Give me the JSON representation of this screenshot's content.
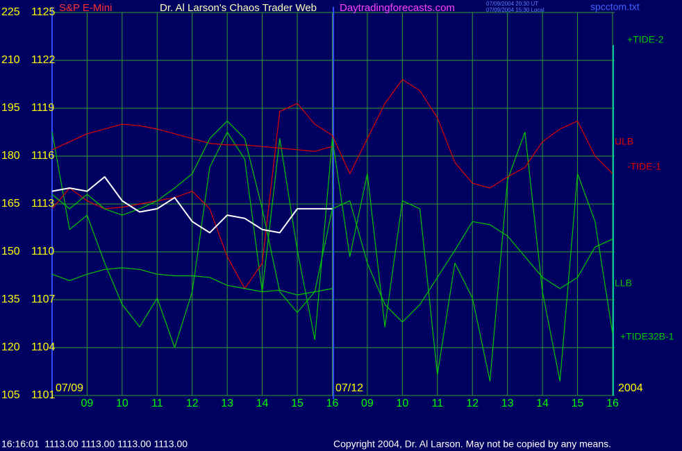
{
  "chart_data": {
    "type": "line",
    "title": "Dr. Al Larson's Chaos Trader Web",
    "symbol": "S&P E-Mini",
    "site": "Daytradingforecasts.com",
    "stamps": [
      "07/09/2004 20:30 UT",
      "07/09/2004 15:30 Local"
    ],
    "file": "spcctom.txt",
    "status": "16:16:01  1113.00 1113.00 1113.00 1113.00",
    "copyright": "Copyright 2004, Dr. Al Larson. May not be copied by any means.",
    "date_labels": [
      "07/09",
      "07/12",
      "2004"
    ],
    "categories": [
      null,
      null,
      "09",
      null,
      "10",
      null,
      "11",
      null,
      "12",
      null,
      "13",
      null,
      "14",
      null,
      "15",
      null,
      "16",
      null,
      "09",
      null,
      "10",
      null,
      "11",
      null,
      "12",
      null,
      "13",
      null,
      "14",
      null,
      "15",
      null,
      "16"
    ],
    "ylim": [
      1101,
      1125
    ],
    "yticks": [
      1101,
      1104,
      1107,
      1110,
      1113,
      1116,
      1119,
      1122,
      1125
    ],
    "y2lim": [
      105,
      225
    ],
    "y2ticks": [
      105,
      120,
      135,
      150,
      165,
      180,
      195,
      210,
      225
    ],
    "grid": true,
    "series": [
      {
        "name": "+TIDE-2",
        "color": "#00c800",
        "values": [
          1117.5,
          1111.4,
          1112.3,
          1109.3,
          1106.7,
          1105.3,
          1107.1,
          1104.0,
          1107.5,
          1115.3,
          1117.5,
          1115.8,
          1107.5,
          1117.1,
          1110.1,
          1104.5,
          1117.1,
          1109.7,
          1114.9,
          1105.3,
          1113.2,
          1112.7,
          1102.3,
          1109.3,
          1107.1,
          1101.9,
          1114.5,
          1117.5,
          1107.5,
          1101.9,
          1114.9,
          1111.9,
          1104.9
        ]
      },
      {
        "name": "ULB",
        "color": "#e00000",
        "values": [
          1116.4,
          1116.9,
          1117.4,
          1117.7,
          1118.0,
          1117.9,
          1117.7,
          1117.4,
          1117.1,
          1116.8,
          1116.7,
          1116.7,
          1116.6,
          1116.5,
          1116.4,
          1116.3,
          1116.6,
          null,
          null,
          null,
          null,
          null,
          null,
          null,
          null,
          null,
          null,
          null,
          null,
          null,
          null,
          null,
          null
        ]
      },
      {
        "name": "-TIDE-1",
        "color": "#e00000",
        "values": [
          1112.7,
          1114.0,
          1113.2,
          1112.7,
          1112.8,
          1113.0,
          1113.2,
          1113.4,
          1113.8,
          1112.7,
          1109.7,
          1107.7,
          1109.3,
          1118.8,
          1119.3,
          1118.0,
          1117.3,
          1114.9,
          1117.1,
          1119.3,
          1120.8,
          1120.1,
          1118.4,
          1115.6,
          1114.3,
          1114.0,
          1114.7,
          1115.3,
          1116.9,
          1117.7,
          1118.2,
          1116.0,
          1114.9
        ]
      },
      {
        "name": "LLB",
        "color": "#00c800",
        "values": [
          1108.6,
          1108.2,
          1108.6,
          1108.9,
          1109.0,
          1108.9,
          1108.6,
          1108.5,
          1108.5,
          1108.4,
          1107.9,
          1107.7,
          1107.5,
          1107.6,
          1107.3,
          1107.5,
          1107.7,
          null,
          null,
          null,
          null,
          null,
          null,
          null,
          null,
          null,
          null,
          null,
          null,
          null,
          null,
          null,
          null
        ]
      },
      {
        "name": "+TIDE32B-1",
        "color": "#00c800",
        "values": [
          1113.6,
          1112.7,
          1113.6,
          1112.7,
          1112.3,
          1112.7,
          1113.2,
          1114.0,
          1114.9,
          1117.1,
          1118.2,
          1117.1,
          1112.7,
          1107.5,
          1106.2,
          1107.5,
          1112.7,
          1113.2,
          1109.3,
          1106.7,
          1105.6,
          1106.7,
          1108.4,
          1110.1,
          1111.9,
          1111.7,
          1111.0,
          1109.7,
          1108.4,
          1107.7,
          1108.4,
          1110.3,
          1110.8
        ]
      },
      {
        "color": "#ffffff",
        "values": [
          1113.8,
          1114.0,
          1113.8,
          1114.7,
          1113.2,
          1112.5,
          1112.7,
          1113.4,
          1111.9,
          1111.2,
          1112.3,
          1112.1,
          1111.4,
          1111.2,
          1112.7,
          1112.7,
          1112.7,
          null,
          null,
          null,
          null,
          null,
          null,
          null,
          null,
          null,
          null,
          null,
          null,
          null,
          null,
          null,
          null
        ]
      }
    ]
  }
}
